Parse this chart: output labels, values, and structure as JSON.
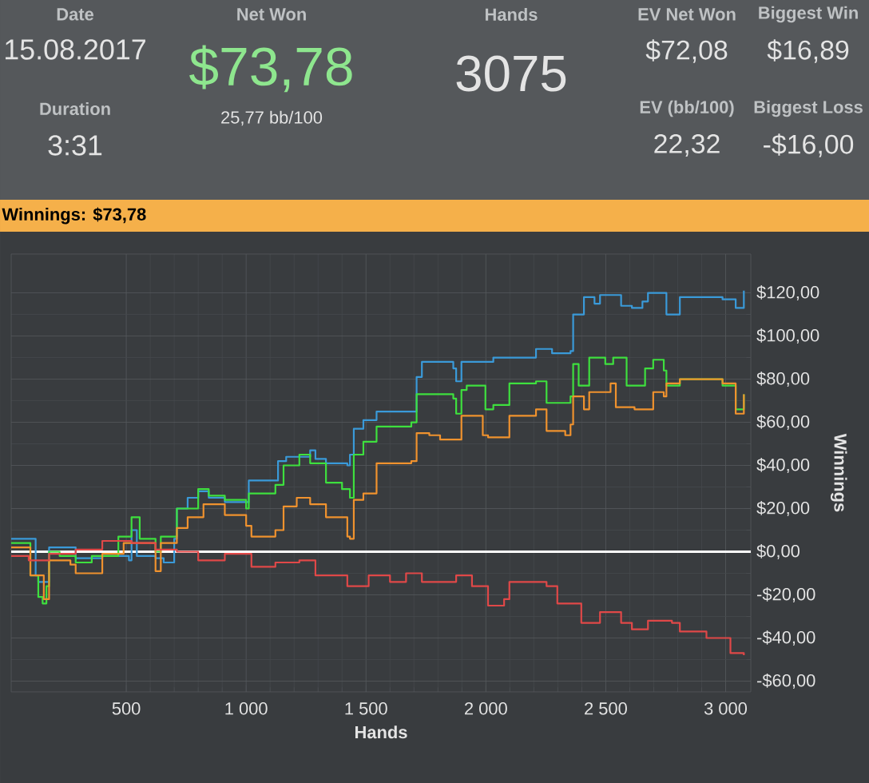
{
  "chart_data": [
    {
      "type": "other",
      "annotations": [
        "Date",
        "15.08.2017",
        "Duration",
        "3:31",
        "Net Won",
        "$73,78",
        "25,77 bb/100",
        "Hands",
        "3075",
        "EV Net Won",
        "$72,08",
        "Biggest Win",
        "$16,89",
        "EV (bb/100)",
        "22,32",
        "Biggest Loss",
        "-$16,00"
      ]
    },
    {
      "type": "step",
      "title": "Winnings: $73,78",
      "xlabel": "Hands",
      "ylabel": "Winnings",
      "xlim": [
        20,
        3105
      ],
      "ylim": [
        -65,
        138
      ],
      "grid": true,
      "xticks": [
        {
          "value": 500,
          "label": "500"
        },
        {
          "value": 1000,
          "label": "1 000"
        },
        {
          "value": 1500,
          "label": "1 500"
        },
        {
          "value": 2000,
          "label": "2 000"
        },
        {
          "value": 2500,
          "label": "2 500"
        },
        {
          "value": 3000,
          "label": "3 000"
        }
      ],
      "yticks": [
        {
          "value": -60,
          "label": "-$60,00"
        },
        {
          "value": -40,
          "label": "-$40,00"
        },
        {
          "value": -20,
          "label": "-$20,00"
        },
        {
          "value": 0,
          "label": "$0,00"
        },
        {
          "value": 20,
          "label": "$20,00"
        },
        {
          "value": 40,
          "label": "$40,00"
        },
        {
          "value": 60,
          "label": "$60,00"
        },
        {
          "value": 80,
          "label": "$80,00"
        },
        {
          "value": 100,
          "label": "$100,00"
        },
        {
          "value": 120,
          "label": "$120,00"
        }
      ],
      "ref_lines": [
        {
          "axis": "y",
          "value": 0,
          "color": "#ffffff"
        }
      ],
      "series": [
        {
          "color": "#3a9ad9",
          "x": [
            20,
            93,
            122,
            133,
            167,
            178,
            289,
            400,
            511,
            522,
            544,
            622,
            656,
            700,
            711,
            756,
            800,
            844,
            911,
            1000,
            1011,
            1122,
            1133,
            1167,
            1267,
            1289,
            1333,
            1422,
            1433,
            1449,
            1489,
            1544,
            1689,
            1711,
            1733,
            1764,
            1864,
            1876,
            1898,
            2031,
            2209,
            2276,
            2353,
            2364,
            2409,
            2453,
            2476,
            2564,
            2609,
            2653,
            2676,
            2731,
            2753,
            2809,
            2987,
            3042,
            3071,
            3076
          ],
          "values": [
            6,
            6,
            -11,
            -14,
            -14,
            2,
            -3,
            -2,
            -4,
            10,
            -2,
            -3,
            -5,
            6,
            20,
            25,
            28,
            25,
            23,
            23,
            33,
            33,
            42,
            44,
            47,
            43,
            41,
            40,
            45,
            57,
            61,
            65,
            65,
            81,
            88,
            88,
            85,
            79,
            88,
            90,
            94,
            92,
            93,
            110,
            118,
            115,
            119,
            114,
            113,
            116,
            120,
            120,
            110,
            118,
            117,
            113,
            113,
            121
          ]
        },
        {
          "color": "#3ee03e",
          "x": [
            20,
            93,
            100,
            133,
            151,
            167,
            178,
            222,
            289,
            356,
            467,
            511,
            522,
            544,
            556,
            622,
            644,
            700,
            711,
            800,
            844,
            911,
            1000,
            1011,
            1122,
            1156,
            1222,
            1267,
            1333,
            1400,
            1433,
            1449,
            1489,
            1544,
            1600,
            1689,
            1711,
            1764,
            1864,
            1876,
            1898,
            1920,
            1998,
            2031,
            2098,
            2209,
            2253,
            2353,
            2364,
            2387,
            2431,
            2498,
            2531,
            2587,
            2664,
            2698,
            2742,
            2753,
            2809,
            2987,
            3042,
            3071,
            3076
          ],
          "values": [
            4,
            4,
            -11,
            -21,
            -24,
            -16,
            0,
            -2,
            -5,
            -2,
            7,
            7,
            16,
            16,
            6,
            0,
            7,
            7,
            20,
            29,
            26,
            24,
            20,
            27,
            31,
            40,
            45,
            41,
            32,
            29,
            25,
            45,
            51,
            58,
            58,
            60,
            73,
            73,
            71,
            64,
            75,
            77,
            66,
            68,
            78,
            79,
            69,
            72,
            87,
            77,
            90,
            87,
            90,
            77,
            85,
            89,
            84,
            77,
            80,
            77,
            66,
            66,
            73
          ]
        },
        {
          "color": "#f0922e",
          "x": [
            20,
            93,
            100,
            156,
            178,
            267,
            289,
            400,
            489,
            622,
            644,
            700,
            711,
            756,
            822,
            911,
            1000,
            1022,
            1122,
            1156,
            1211,
            1267,
            1333,
            1422,
            1433,
            1449,
            1489,
            1544,
            1689,
            1711,
            1764,
            1809,
            1876,
            1898,
            1987,
            2009,
            2098,
            2209,
            2253,
            2331,
            2353,
            2364,
            2409,
            2431,
            2520,
            2542,
            2620,
            2698,
            2742,
            2753,
            2809,
            2987,
            3042,
            3071,
            3076
          ],
          "values": [
            2,
            2,
            -11,
            -22,
            -4,
            -6,
            -10,
            -1,
            4,
            -9,
            4,
            4,
            11,
            16,
            22,
            17,
            12,
            7,
            10,
            21,
            25,
            22,
            16,
            7,
            6,
            24,
            27,
            41,
            42,
            55,
            54,
            52,
            52,
            63,
            54,
            53,
            63,
            66,
            56,
            54,
            59,
            72,
            66,
            74,
            78,
            67,
            66,
            74,
            72,
            78,
            80,
            78,
            64,
            64,
            73
          ]
        },
        {
          "color": "#e04848",
          "x": [
            20,
            93,
            178,
            289,
            400,
            522,
            622,
            711,
            800,
            911,
            1022,
            1122,
            1222,
            1289,
            1422,
            1511,
            1600,
            1667,
            1733,
            1764,
            1876,
            1942,
            2009,
            2076,
            2098,
            2253,
            2298,
            2353,
            2398,
            2476,
            2564,
            2609,
            2676,
            2776,
            2809,
            2920,
            3009,
            3020,
            3076
          ],
          "values": [
            -2,
            -4,
            -1,
            1,
            5,
            4,
            1,
            0,
            -4,
            -1,
            -7,
            -5,
            -4,
            -11,
            -16,
            -11,
            -14,
            -10,
            -14,
            -14,
            -11,
            -16,
            -25,
            -22,
            -14,
            -16,
            -24,
            -24,
            -33,
            -28,
            -33,
            -36,
            -32,
            -33,
            -37,
            -40,
            -40,
            -47,
            -48
          ]
        }
      ]
    }
  ]
}
